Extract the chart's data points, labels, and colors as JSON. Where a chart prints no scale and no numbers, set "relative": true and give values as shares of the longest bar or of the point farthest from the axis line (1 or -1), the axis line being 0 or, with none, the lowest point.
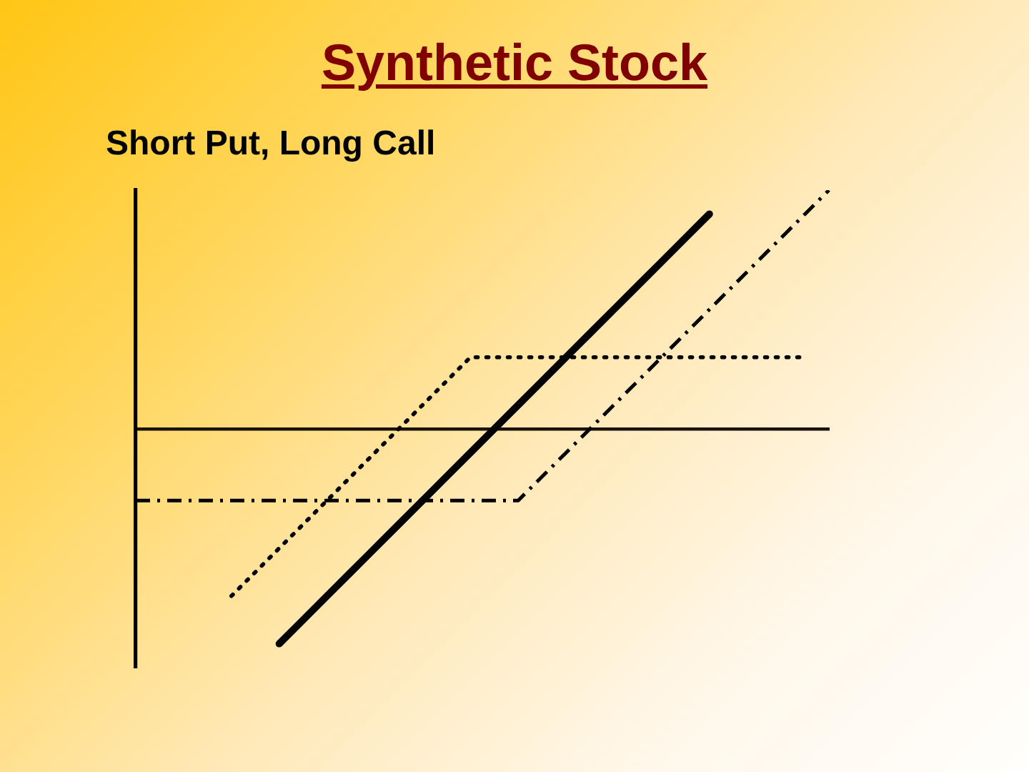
{
  "chart_data": {
    "type": "line",
    "title": "Synthetic Stock",
    "subtitle": "Short Put, Long Call",
    "relative": true,
    "categories": [
      null,
      null,
      null,
      null,
      null,
      null,
      null,
      null,
      null,
      null,
      null,
      null,
      null,
      null,
      null,
      null,
      null,
      null,
      null,
      null,
      null,
      null,
      null,
      null,
      null,
      null,
      null,
      null,
      null,
      null
    ],
    "series": [
      {
        "color": "#000000",
        "line_style": "dotted",
        "values": [
          null,
          null,
          null,
          null,
          -0.7,
          -0.6,
          -0.5,
          -0.4,
          -0.3,
          -0.2,
          -0.1,
          0,
          0.1,
          0.2,
          0.3,
          0.3,
          0.3,
          0.3,
          0.3,
          0.3,
          0.3,
          0.3,
          0.3,
          0.3,
          0.3,
          0.3,
          0.3,
          0.3,
          0.3,
          null
        ]
      },
      {
        "color": "#000000",
        "line_style": "dashed",
        "values": [
          -0.3,
          -0.3,
          -0.3,
          -0.3,
          -0.3,
          -0.3,
          -0.3,
          -0.3,
          -0.3,
          -0.3,
          -0.3,
          -0.3,
          -0.3,
          -0.3,
          -0.3,
          -0.3,
          -0.3,
          -0.2,
          -0.1,
          0,
          0.1,
          0.2,
          0.3,
          0.4,
          0.5,
          0.6,
          0.7,
          0.8,
          0.9,
          1.0
        ]
      },
      {
        "color": "#000000",
        "line_style": "solid",
        "values": [
          null,
          null,
          null,
          null,
          null,
          null,
          -0.9,
          -0.8,
          -0.7,
          -0.6,
          -0.5,
          -0.4,
          -0.3,
          -0.2,
          -0.1,
          0,
          0.1,
          0.2,
          0.3,
          0.4,
          0.5,
          0.6,
          0.7,
          0.8,
          0.9,
          null,
          null,
          null,
          null,
          null
        ]
      }
    ],
    "marker": "none",
    "grid": false,
    "legend": false
  }
}
